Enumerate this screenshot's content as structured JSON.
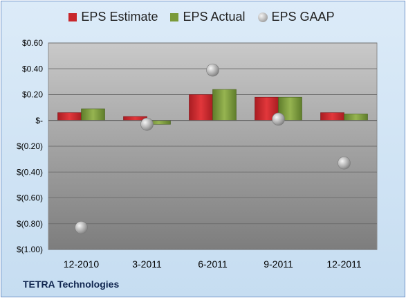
{
  "chart_data": {
    "type": "bar",
    "categories": [
      "12-2010",
      "3-2011",
      "6-2011",
      "9-2011",
      "12-2011"
    ],
    "series": [
      {
        "name": "EPS Estimate",
        "kind": "bar",
        "color": "#c8262b",
        "values": [
          0.06,
          0.03,
          0.2,
          0.18,
          0.06
        ]
      },
      {
        "name": "EPS Actual",
        "kind": "bar",
        "color": "#7a9a3a",
        "values": [
          0.09,
          -0.03,
          0.24,
          0.18,
          0.05
        ]
      },
      {
        "name": "EPS GAAP",
        "kind": "scatter",
        "color": "#a8a8a8",
        "values": [
          -0.83,
          -0.03,
          0.39,
          0.01,
          -0.33
        ]
      }
    ],
    "yticks": [
      "$0.60",
      "$0.40",
      "$0.20",
      "$-",
      "$(0.20)",
      "$(0.40)",
      "$(0.60)",
      "$(0.80)",
      "$(1.00)"
    ],
    "ylim": [
      -1.0,
      0.6
    ],
    "legend_position": "top",
    "grid": true
  },
  "footer": {
    "company": "TETRA Technologies"
  }
}
